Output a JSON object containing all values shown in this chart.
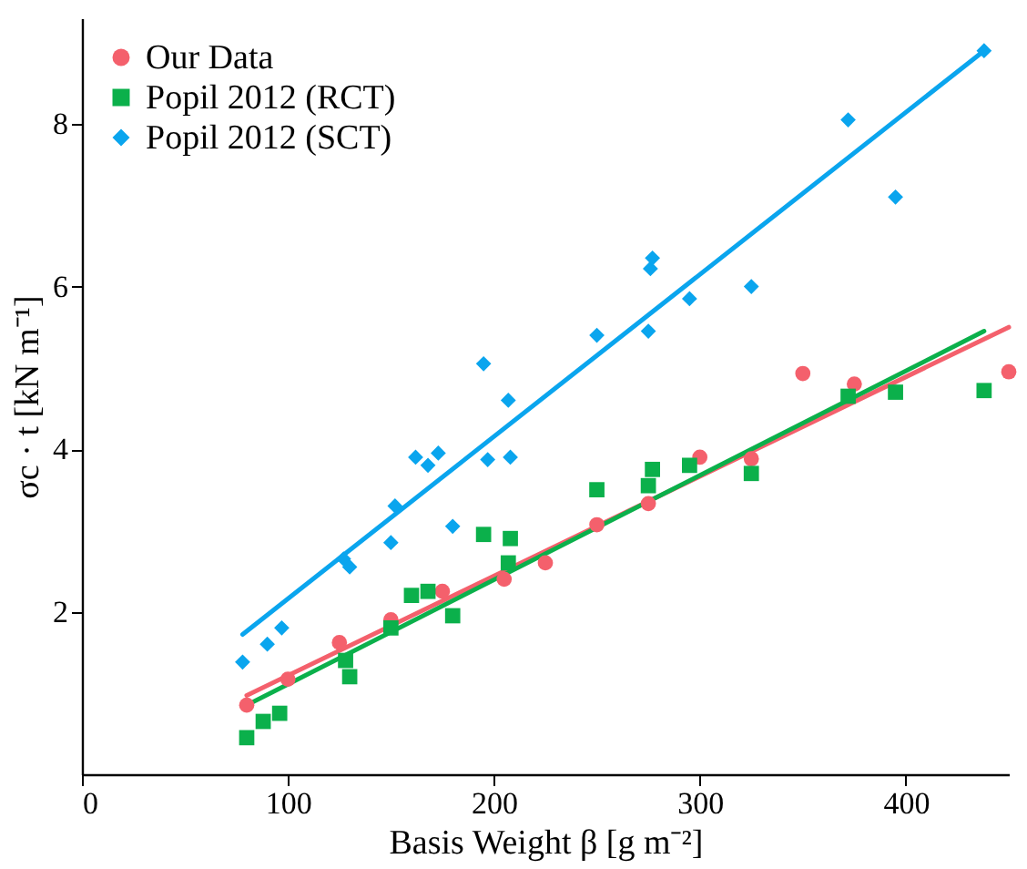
{
  "chart_data": {
    "type": "scatter",
    "xlabel": "Basis Weight β [g m⁻²]",
    "ylabel": "σc · t [kN m⁻¹]",
    "xlim": [
      0,
      450
    ],
    "ylim": [
      0,
      9.3
    ],
    "xticks": [
      0,
      100,
      200,
      300,
      400
    ],
    "yticks": [
      2,
      4,
      6,
      8
    ],
    "grid": false,
    "legend": "top left",
    "series": [
      {
        "name": "Our Data",
        "color": "#f4606c",
        "marker": "circle",
        "x": [
          80,
          100,
          125,
          150,
          175,
          205,
          225,
          250,
          275,
          300,
          325,
          350,
          375,
          450
        ],
        "values": [
          0.85,
          1.17,
          1.62,
          1.9,
          2.25,
          2.4,
          2.6,
          3.07,
          3.33,
          3.9,
          3.88,
          4.93,
          4.8,
          4.95
        ]
      },
      {
        "name": "Popil 2012 (RCT)",
        "color": "#0bb04b",
        "marker": "square",
        "x": [
          80,
          88,
          96,
          128,
          130,
          150,
          160,
          168,
          180,
          195,
          207,
          208,
          250,
          275,
          277,
          295,
          325,
          372,
          395,
          438
        ],
        "values": [
          0.45,
          0.65,
          0.75,
          1.4,
          1.2,
          1.8,
          2.2,
          2.25,
          1.95,
          2.95,
          2.6,
          2.9,
          3.5,
          3.55,
          3.75,
          3.8,
          3.7,
          4.65,
          4.7,
          4.72
        ]
      },
      {
        "name": "Popil 2012 (SCT)",
        "color": "#0aa5ee",
        "marker": "diamond",
        "x": [
          78,
          90,
          97,
          127,
          130,
          150,
          152,
          162,
          168,
          173,
          180,
          195,
          197,
          207,
          208,
          250,
          275,
          276,
          277,
          295,
          325,
          372,
          395,
          438
        ],
        "values": [
          1.38,
          1.6,
          1.8,
          2.65,
          2.55,
          2.85,
          3.3,
          3.9,
          3.8,
          3.95,
          3.05,
          5.05,
          3.87,
          4.6,
          3.9,
          5.4,
          5.45,
          6.22,
          6.35,
          5.85,
          6.0,
          8.05,
          7.1,
          8.9
        ]
      },
      {
        "type": "line",
        "color": "#f4606c",
        "line_style": "solid",
        "x": [
          80,
          450
        ],
        "values": [
          0.97,
          5.5
        ]
      },
      {
        "type": "line",
        "color": "#0bb04b",
        "line_style": "solid",
        "x": [
          80,
          438
        ],
        "values": [
          0.85,
          5.45
        ]
      },
      {
        "type": "line",
        "color": "#0aa5ee",
        "line_style": "solid",
        "x": [
          78,
          438
        ],
        "values": [
          1.72,
          8.9
        ]
      }
    ]
  }
}
